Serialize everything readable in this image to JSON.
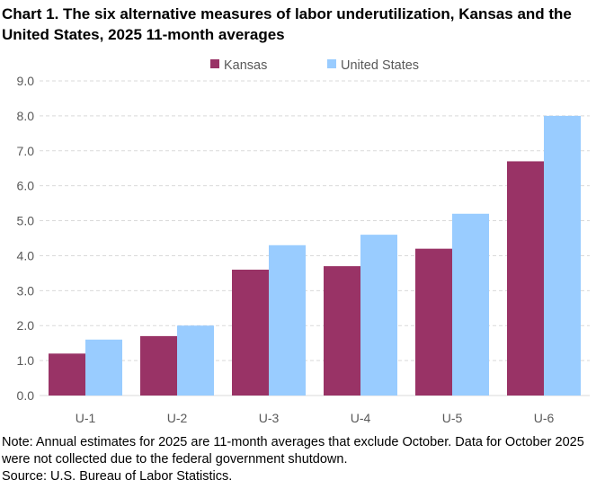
{
  "chart_data": {
    "type": "bar",
    "title": "Chart 1. The six alternative measures of labor underutilization, Kansas and the United States, 2025 11-month averages",
    "categories": [
      "U-1",
      "U-2",
      "U-3",
      "U-4",
      "U-5",
      "U-6"
    ],
    "series": [
      {
        "name": "Kansas",
        "color": "#993366",
        "values": [
          1.2,
          1.7,
          3.6,
          3.7,
          4.2,
          6.7
        ]
      },
      {
        "name": "United States",
        "color": "#99CCFF",
        "values": [
          1.6,
          2.0,
          4.3,
          4.6,
          5.2,
          8.0
        ]
      }
    ],
    "ylim": [
      0,
      9
    ],
    "yticks": [
      "0.0",
      "1.0",
      "2.0",
      "3.0",
      "4.0",
      "5.0",
      "6.0",
      "7.0",
      "8.0",
      "9.0"
    ],
    "xlabel": "",
    "ylabel": "",
    "grid": true,
    "legend": "top-center"
  },
  "notes": {
    "note": "Note: Annual estimates for 2025 are 11-month averages that exclude October. Data for October 2025 were not collected due to the federal government shutdown.",
    "source": "Source: U.S. Bureau of Labor Statistics."
  }
}
